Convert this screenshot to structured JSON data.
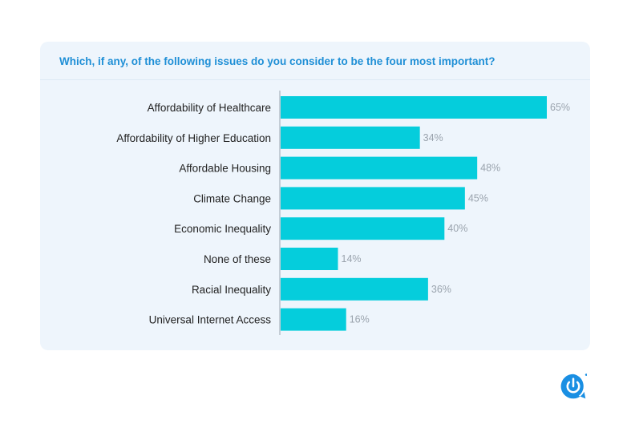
{
  "question": "Which, if any, of the following issues do you consider to be the four most important?",
  "colors": {
    "bar": "#05cddc",
    "category_text": "#222222",
    "value_text": "#9aa3ad",
    "question_text": "#1f8fd6",
    "card_background": "#eef5fc",
    "logo": "#1a8fe3"
  },
  "logo_icon": "survey-power-logo-icon",
  "chart_data": {
    "type": "bar",
    "orientation": "horizontal",
    "title": "Which, if any, of the following issues do you consider to be the four most important?",
    "categories": [
      "Affordability of Healthcare",
      "Affordability of Higher Education",
      "Affordable Housing",
      "Climate Change",
      "Economic Inequality",
      "None of these",
      "Racial Inequality",
      "Universal Internet Access"
    ],
    "values": [
      65,
      34,
      48,
      45,
      40,
      14,
      36,
      16
    ],
    "value_labels": [
      "65%",
      "34%",
      "48%",
      "45%",
      "40%",
      "14%",
      "36%",
      "16%"
    ],
    "xlim": [
      0,
      65
    ],
    "grid": false,
    "legend": "none"
  }
}
